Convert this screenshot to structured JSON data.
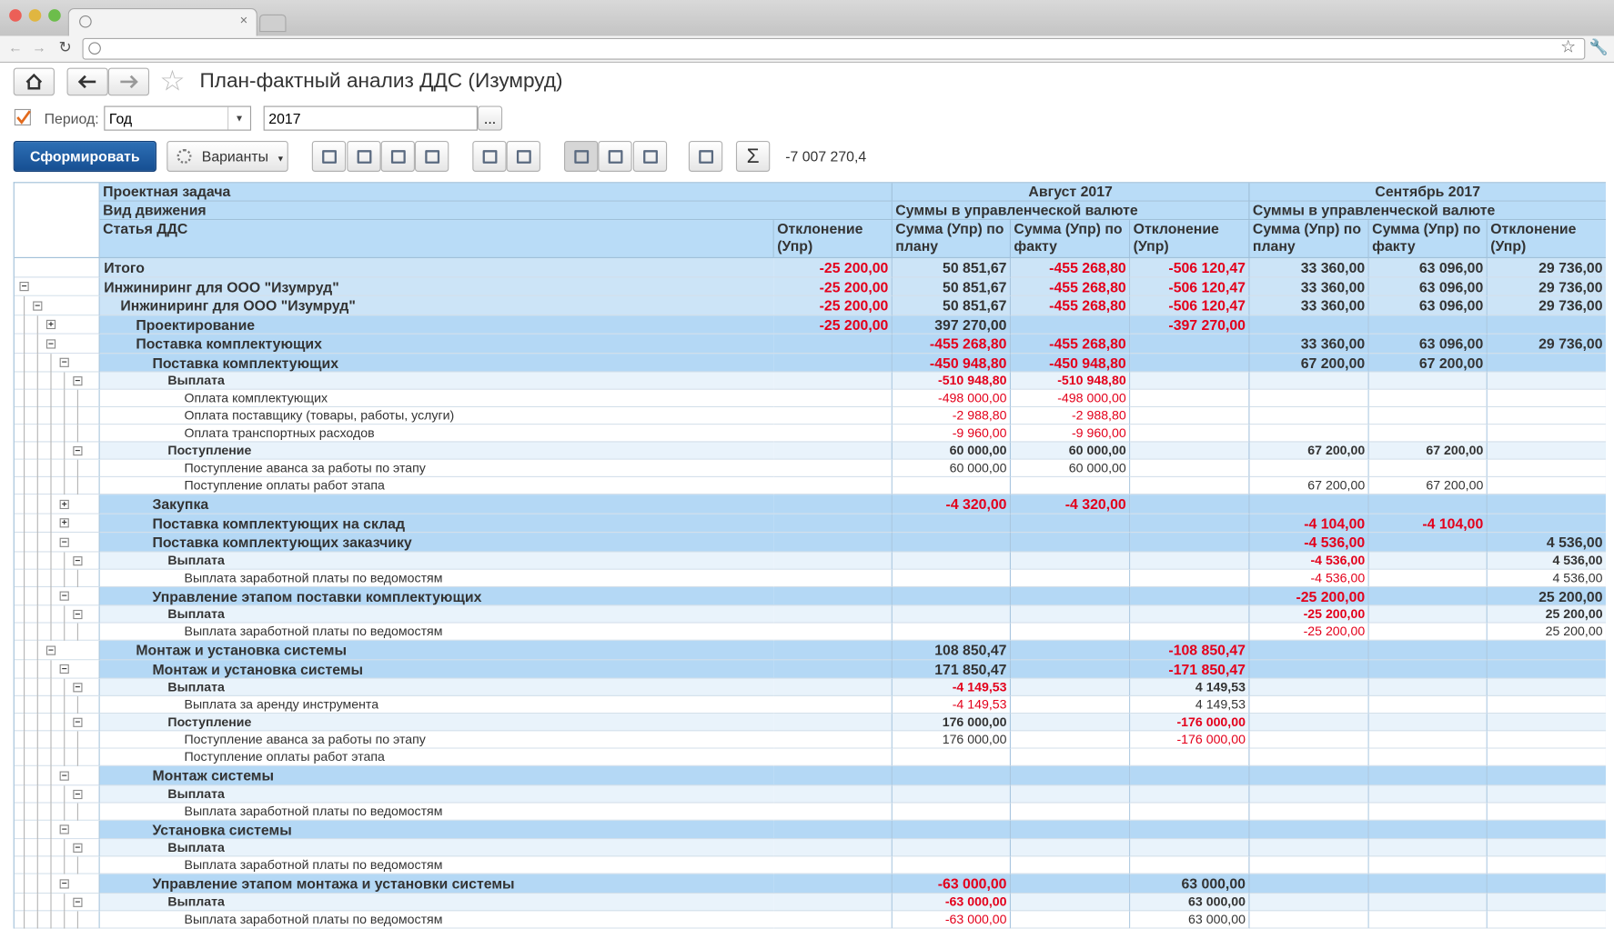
{
  "header": {
    "title": "План-фактный анализ ДДС (Изумруд)"
  },
  "filters": {
    "period_label": "Период:",
    "period_type": "Год",
    "period_value": "2017",
    "select_button": "..."
  },
  "toolbar": {
    "generate": "Сформировать",
    "variants": "Варианты",
    "sum": "-7 007 270,4"
  },
  "table": {
    "row_headers": [
      "Проектная задача",
      "Вид движения",
      "Статья ДДС"
    ],
    "first_column": "Отклонение (Упр)",
    "groups": [
      {
        "title": "Август 2017",
        "subtitle": "Суммы в управленческой валюте",
        "columns": [
          "Сумма (Упр) по плану",
          "Сумма (Упр) по факту",
          "Отклонение (Упр)"
        ]
      },
      {
        "title": "Сентябрь 2017",
        "subtitle": "Суммы в управленческой валюте",
        "columns": [
          "Сумма (Упр) по плану",
          "Сумма (Упр) по факту",
          "Отклонение (Упр)"
        ]
      }
    ],
    "rows": [
      {
        "label": "Итого",
        "level": -1,
        "cells": [
          "-25 200,00",
          "50 851,67",
          "-455 268,80",
          "-506 120,47",
          "33 360,00",
          "63 096,00",
          "29 736,00"
        ]
      },
      {
        "label": "Инжиниринг для ООО \"Изумруд\"",
        "level": 0,
        "cells": [
          "-25 200,00",
          "50 851,67",
          "-455 268,80",
          "-506 120,47",
          "33 360,00",
          "63 096,00",
          "29 736,00"
        ]
      },
      {
        "label": "Инжиниринг для ООО \"Изумруд\"",
        "level": 1,
        "cells": [
          "-25 200,00",
          "50 851,67",
          "-455 268,80",
          "-506 120,47",
          "33 360,00",
          "63 096,00",
          "29 736,00"
        ]
      },
      {
        "label": "Проектирование",
        "level": 2,
        "collapsed": true,
        "cells": [
          "-25 200,00",
          "397 270,00",
          null,
          "-397 270,00",
          null,
          null,
          null
        ]
      },
      {
        "label": "Поставка комплектующих",
        "level": 2,
        "cells": [
          null,
          "-455 268,80",
          "-455 268,80",
          null,
          "33 360,00",
          "63 096,00",
          "29 736,00"
        ]
      },
      {
        "label": "Поставка комплектующих",
        "level": 3,
        "cells": [
          null,
          "-450 948,80",
          "-450 948,80",
          null,
          "67 200,00",
          "67 200,00",
          null
        ]
      },
      {
        "label": "Выплата",
        "level": 4,
        "cells": [
          null,
          "-510 948,80",
          "-510 948,80",
          null,
          null,
          null,
          null
        ]
      },
      {
        "label": "Оплата комплектующих",
        "level": 5,
        "cells": [
          null,
          "-498 000,00",
          "-498 000,00",
          null,
          null,
          null,
          null
        ]
      },
      {
        "label": "Оплата поставщику (товары, работы, услуги)",
        "level": 5,
        "cells": [
          null,
          "-2 988,80",
          "-2 988,80",
          null,
          null,
          null,
          null
        ]
      },
      {
        "label": "Оплата транспортных расходов",
        "level": 5,
        "cells": [
          null,
          "-9 960,00",
          "-9 960,00",
          null,
          null,
          null,
          null
        ]
      },
      {
        "label": "Поступление",
        "level": 4,
        "cells": [
          null,
          "60 000,00",
          "60 000,00",
          null,
          "67 200,00",
          "67 200,00",
          null
        ]
      },
      {
        "label": "Поступление аванса за работы по этапу",
        "level": 5,
        "cells": [
          null,
          "60 000,00",
          "60 000,00",
          null,
          null,
          null,
          null
        ]
      },
      {
        "label": "Поступление оплаты работ этапа",
        "level": 5,
        "cells": [
          null,
          null,
          null,
          null,
          "67 200,00",
          "67 200,00",
          null
        ]
      },
      {
        "label": "Закупка",
        "level": 3,
        "collapsed": true,
        "cells": [
          null,
          "-4 320,00",
          "-4 320,00",
          null,
          null,
          null,
          null
        ]
      },
      {
        "label": "Поставка комплектующих на склад",
        "level": 3,
        "collapsed": true,
        "cells": [
          null,
          null,
          null,
          null,
          "-4 104,00",
          "-4 104,00",
          null
        ]
      },
      {
        "label": "Поставка комплектующих заказчику",
        "level": 3,
        "cells": [
          null,
          null,
          null,
          null,
          "-4 536,00",
          null,
          "4 536,00"
        ]
      },
      {
        "label": "Выплата",
        "level": 4,
        "cells": [
          null,
          null,
          null,
          null,
          "-4 536,00",
          null,
          "4 536,00"
        ]
      },
      {
        "label": "Выплата заработной платы по ведомостям",
        "level": 5,
        "cells": [
          null,
          null,
          null,
          null,
          "-4 536,00",
          null,
          "4 536,00"
        ]
      },
      {
        "label": "Управление этапом поставки комплектующих",
        "level": 3,
        "cells": [
          null,
          null,
          null,
          null,
          "-25 200,00",
          null,
          "25 200,00"
        ]
      },
      {
        "label": "Выплата",
        "level": 4,
        "cells": [
          null,
          null,
          null,
          null,
          "-25 200,00",
          null,
          "25 200,00"
        ]
      },
      {
        "label": "Выплата заработной платы по ведомостям",
        "level": 5,
        "cells": [
          null,
          null,
          null,
          null,
          "-25 200,00",
          null,
          "25 200,00"
        ]
      },
      {
        "label": "Монтаж и установка системы",
        "level": 2,
        "cells": [
          null,
          "108 850,47",
          null,
          "-108 850,47",
          null,
          null,
          null
        ]
      },
      {
        "label": "Монтаж и установка системы",
        "level": 3,
        "cells": [
          null,
          "171 850,47",
          null,
          "-171 850,47",
          null,
          null,
          null
        ]
      },
      {
        "label": "Выплата",
        "level": 4,
        "cells": [
          null,
          "-4 149,53",
          null,
          "4 149,53",
          null,
          null,
          null
        ]
      },
      {
        "label": "Выплата за аренду инструмента",
        "level": 5,
        "cells": [
          null,
          "-4 149,53",
          null,
          "4 149,53",
          null,
          null,
          null
        ]
      },
      {
        "label": "Поступление",
        "level": 4,
        "cells": [
          null,
          "176 000,00",
          null,
          "-176 000,00",
          null,
          null,
          null
        ]
      },
      {
        "label": "Поступление аванса за работы по этапу",
        "level": 5,
        "cells": [
          null,
          "176 000,00",
          null,
          "-176 000,00",
          null,
          null,
          null
        ]
      },
      {
        "label": "Поступление оплаты работ этапа",
        "level": 5,
        "cells": [
          null,
          null,
          null,
          null,
          null,
          null,
          null
        ]
      },
      {
        "label": "Монтаж системы",
        "level": 3,
        "cells": [
          null,
          null,
          null,
          null,
          null,
          null,
          null
        ]
      },
      {
        "label": "Выплата",
        "level": 4,
        "cells": [
          null,
          null,
          null,
          null,
          null,
          null,
          null
        ]
      },
      {
        "label": "Выплата заработной платы по ведомостям",
        "level": 5,
        "cells": [
          null,
          null,
          null,
          null,
          null,
          null,
          null
        ]
      },
      {
        "label": "Установка системы",
        "level": 3,
        "cells": [
          null,
          null,
          null,
          null,
          null,
          null,
          null
        ]
      },
      {
        "label": "Выплата",
        "level": 4,
        "cells": [
          null,
          null,
          null,
          null,
          null,
          null,
          null
        ]
      },
      {
        "label": "Выплата заработной платы по ведомостям",
        "level": 5,
        "cells": [
          null,
          null,
          null,
          null,
          null,
          null,
          null
        ]
      },
      {
        "label": "Управление этапом монтажа и установки системы",
        "level": 3,
        "cells": [
          null,
          "-63 000,00",
          null,
          "63 000,00",
          null,
          null,
          null
        ]
      },
      {
        "label": "Выплата",
        "level": 4,
        "cells": [
          null,
          "-63 000,00",
          null,
          "63 000,00",
          null,
          null,
          null
        ]
      },
      {
        "label": "Выплата заработной платы по ведомостям",
        "level": 5,
        "cells": [
          null,
          "-63 000,00",
          null,
          "63 000,00",
          null,
          null,
          null
        ]
      }
    ]
  }
}
